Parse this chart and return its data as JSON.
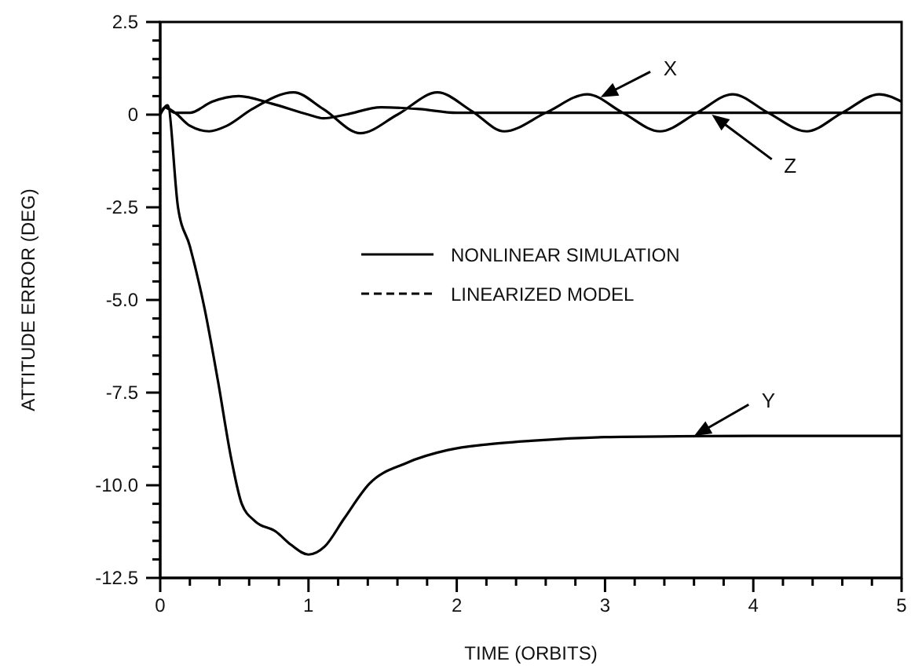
{
  "chart_data": {
    "type": "line",
    "xlabel": "TIME (ORBITS)",
    "ylabel": "ATTITUDE ERROR (DEG)",
    "xlim": [
      0,
      5
    ],
    "ylim": [
      -12.5,
      2.5
    ],
    "xticks": [
      0,
      {
        "value": 0.2,
        "label": null
      },
      {
        "value": 0.4,
        "label": null
      },
      {
        "value": 0.6,
        "label": null
      },
      {
        "value": 0.8,
        "label": null
      },
      1,
      {
        "value": 1.2,
        "label": null
      },
      {
        "value": 1.4,
        "label": null
      },
      {
        "value": 1.6,
        "label": null
      },
      {
        "value": 1.8,
        "label": null
      },
      2,
      {
        "value": 2.2,
        "label": null
      },
      {
        "value": 2.4,
        "label": null
      },
      {
        "value": 2.6,
        "label": null
      },
      {
        "value": 2.8,
        "label": null
      },
      3,
      {
        "value": 3.2,
        "label": null
      },
      {
        "value": 3.4,
        "label": null
      },
      {
        "value": 3.6,
        "label": null
      },
      {
        "value": 3.8,
        "label": null
      },
      4,
      {
        "value": 4.2,
        "label": null
      },
      {
        "value": 4.4,
        "label": null
      },
      {
        "value": 4.6,
        "label": null
      },
      {
        "value": 4.8,
        "label": null
      },
      5
    ],
    "yticks": [
      {
        "value": -12.5,
        "label": "-12.5"
      },
      {
        "value": -12,
        "label": null
      },
      {
        "value": -11.5,
        "label": null
      },
      {
        "value": -11,
        "label": null
      },
      {
        "value": -10.5,
        "label": null
      },
      {
        "value": -10,
        "label": "-10.0"
      },
      {
        "value": -9.5,
        "label": null
      },
      {
        "value": -9,
        "label": null
      },
      {
        "value": -8.5,
        "label": null
      },
      {
        "value": -8,
        "label": null
      },
      -7.5,
      {
        "value": -7,
        "label": null
      },
      {
        "value": -6.5,
        "label": null
      },
      {
        "value": -6,
        "label": null
      },
      {
        "value": -5.5,
        "label": null
      },
      {
        "value": -5,
        "label": "-5.0"
      },
      {
        "value": -4.5,
        "label": null
      },
      {
        "value": -4,
        "label": null
      },
      {
        "value": -3.5,
        "label": null
      },
      {
        "value": -3,
        "label": null
      },
      -2.5,
      {
        "value": -2,
        "label": null
      },
      {
        "value": -1.5,
        "label": null
      },
      {
        "value": -1,
        "label": null
      },
      {
        "value": -0.5,
        "label": null
      },
      0,
      {
        "value": 0.5,
        "label": null
      },
      {
        "value": 1,
        "label": null
      },
      {
        "value": 1.5,
        "label": null
      },
      {
        "value": 2,
        "label": null
      },
      2.5
    ],
    "grid": false,
    "legend": "center",
    "marker": "none",
    "series": [
      {
        "name": "NONLINEAR SIMULATION",
        "color": "#000000",
        "line_style": "solid",
        "x": [
          0,
          0.03,
          0.1,
          0.2,
          0.33,
          0.45,
          0.62,
          0.9,
          1.1,
          1.35,
          1.6,
          1.87,
          2.1,
          2.32,
          2.6,
          2.88,
          3.12,
          3.37,
          3.62,
          3.86,
          4.1,
          4.36,
          4.6,
          4.85,
          5,
          null,
          0,
          0.05,
          0.12,
          0.2,
          0.3,
          0.39,
          0.48,
          0.55,
          0.64,
          0.78,
          0.88,
          1.0,
          1.11,
          1.24,
          1.41,
          1.66,
          1.94,
          2.2,
          2.5,
          3,
          3.5,
          4,
          4.5,
          5,
          null,
          0,
          0.03,
          0.1,
          0.2,
          0.35,
          0.53,
          0.75,
          1.0,
          1.1,
          1.25,
          1.49,
          1.75,
          2.0,
          2.5,
          3,
          4,
          5
        ],
        "values": [
          0,
          0.2,
          0.05,
          -0.3,
          -0.45,
          -0.3,
          0.15,
          0.6,
          0.15,
          -0.5,
          0,
          0.6,
          0.1,
          -0.45,
          0.05,
          0.55,
          0.05,
          -0.45,
          0.05,
          0.55,
          0.05,
          -0.45,
          0.05,
          0.55,
          0.35,
          null,
          0,
          0.25,
          -2.5,
          -3.55,
          -5.25,
          -7.2,
          -9.3,
          -10.5,
          -10.97,
          -11.25,
          -11.6,
          -11.87,
          -11.65,
          -10.9,
          -9.96,
          -9.4,
          -9.05,
          -8.9,
          -8.8,
          -8.7,
          -8.68,
          -8.67,
          -8.67,
          -8.67,
          null,
          0,
          0.2,
          0.05,
          0.05,
          0.35,
          0.5,
          0.3,
          0,
          -0.1,
          0,
          0.2,
          0.15,
          0.05,
          0.05,
          0.05,
          0.05,
          0.05
        ]
      },
      {
        "name": "LINEARIZED MODEL",
        "color": "#000000",
        "line_style": "dashed"
      }
    ],
    "annotations": [
      {
        "text": "X",
        "x": 2.97,
        "y": 0.47
      },
      {
        "text": "Z",
        "x": 3.72,
        "y": 0
      },
      {
        "text": "Y",
        "x": 3.6,
        "y": -8.67
      }
    ]
  }
}
